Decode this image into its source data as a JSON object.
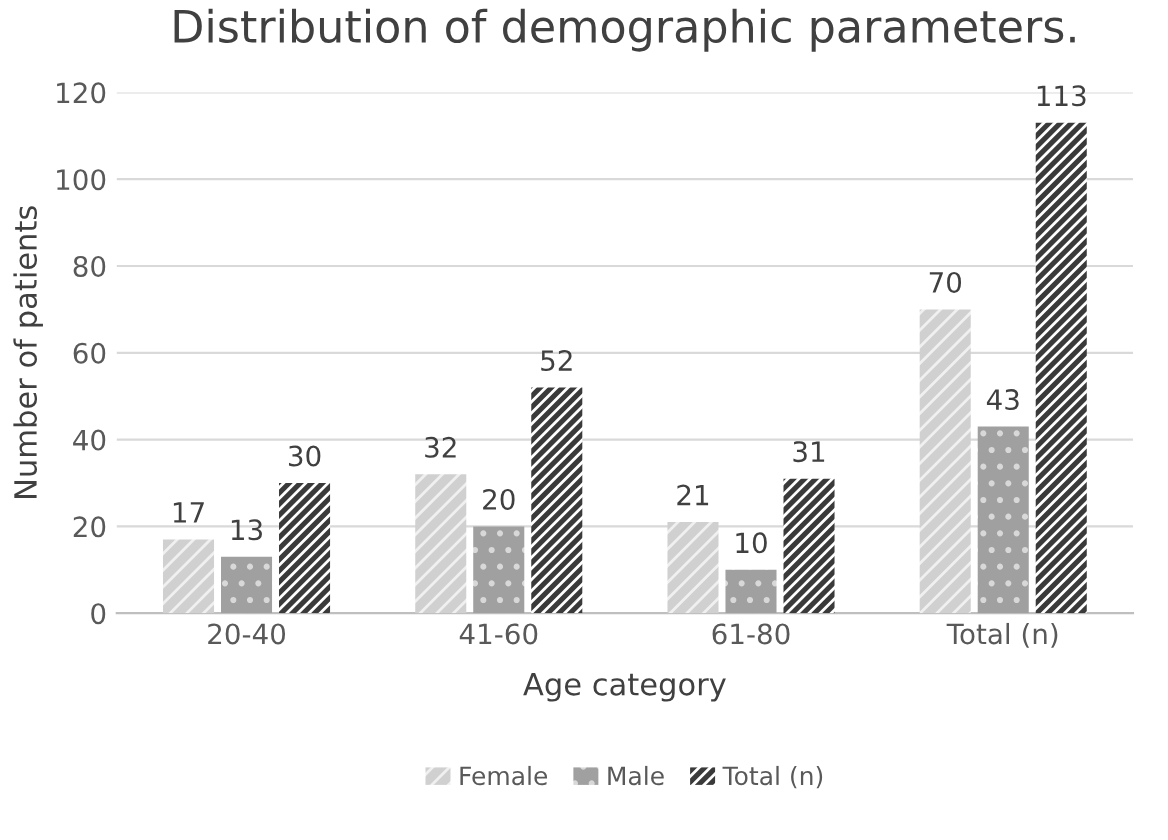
{
  "chart_data": {
    "type": "bar",
    "title": "Distribution of demographic parameters.",
    "xlabel": "Age category",
    "ylabel": "Number of patients",
    "categories": [
      "20-40",
      "41-60",
      "61-80",
      "Total (n)"
    ],
    "series": [
      {
        "name": "Female",
        "color": "#d0d0d0",
        "values": [
          17,
          32,
          21,
          70
        ]
      },
      {
        "name": "Male",
        "color": "#a0a0a0",
        "values": [
          13,
          20,
          10,
          43
        ]
      },
      {
        "name": "Total (n)",
        "color": "#3a3a3a",
        "values": [
          30,
          52,
          31,
          113
        ]
      }
    ],
    "ylim": [
      0,
      120
    ],
    "yticks": [
      0,
      20,
      40,
      60,
      80,
      100,
      120
    ],
    "grid": "y",
    "legend": "bottom",
    "data_labels": true
  }
}
